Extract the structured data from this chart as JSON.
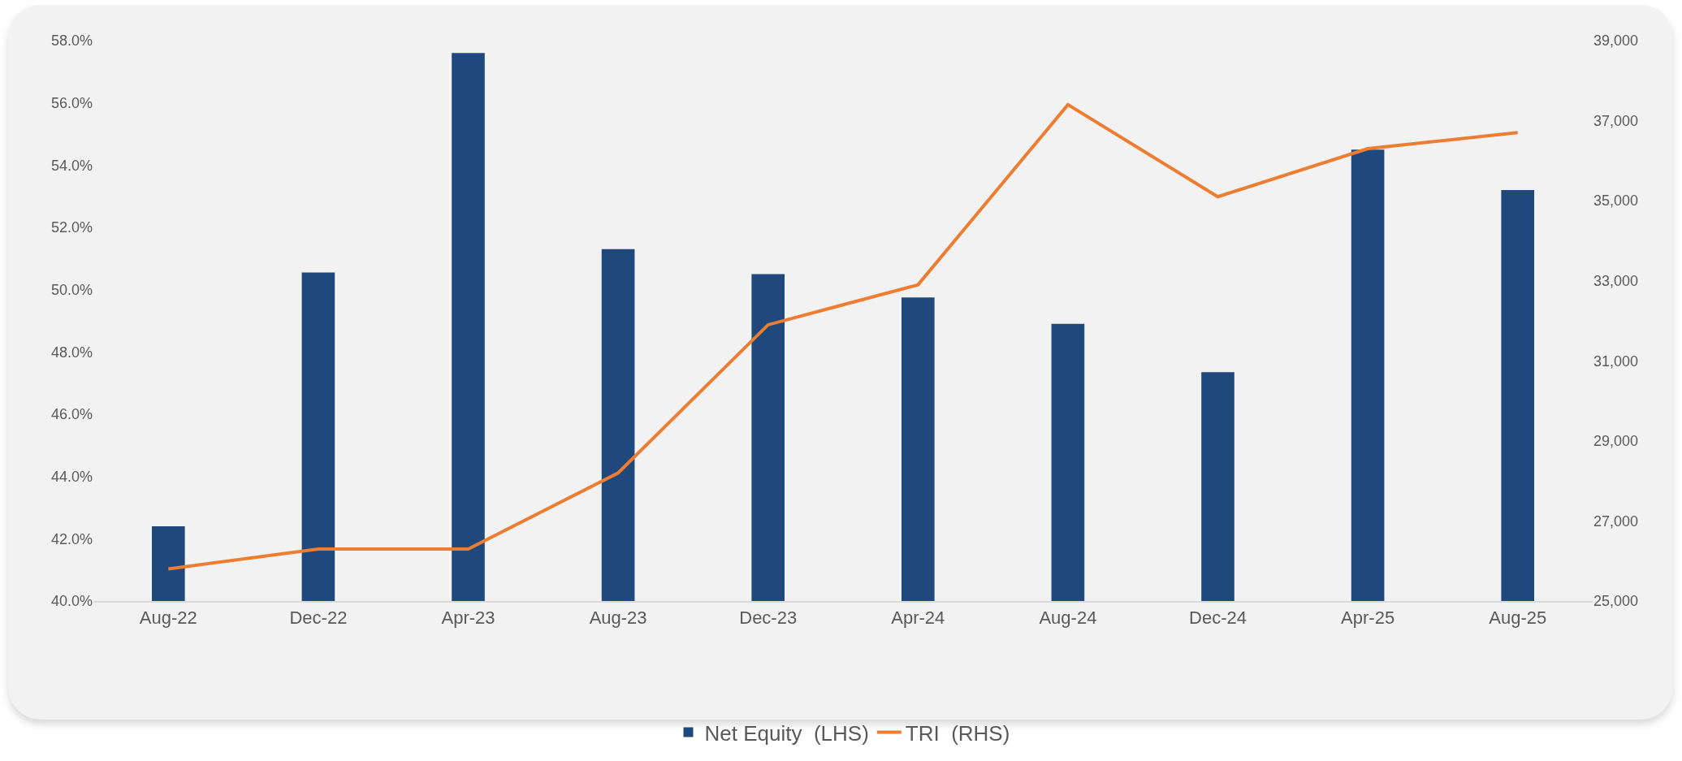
{
  "chart_data": {
    "type": "bar",
    "categories": [
      "Aug-22",
      "Dec-22",
      "Apr-23",
      "Aug-23",
      "Dec-23",
      "Apr-24",
      "Aug-24",
      "Dec-24",
      "Apr-25",
      "Aug-25"
    ],
    "series": [
      {
        "name": "Net Equity  (LHS)",
        "color": "#1f497d",
        "values": [
          42.4,
          50.55,
          57.6,
          51.3,
          50.5,
          49.75,
          48.9,
          47.35,
          54.5,
          53.2
        ]
      },
      {
        "name": "TRI  (RHS)",
        "type": "line",
        "axis": "y2",
        "color": "#ed7d31",
        "values": [
          25800,
          26300,
          26300,
          28200,
          31900,
          32900,
          37400,
          35100,
          36300,
          36700
        ]
      }
    ],
    "ylim": [
      40,
      58
    ],
    "yticks": [
      {
        "value": 40,
        "label": "40.0%"
      },
      {
        "value": 42,
        "label": "42.0%"
      },
      {
        "value": 44,
        "label": "44.0%"
      },
      {
        "value": 46,
        "label": "46.0%"
      },
      {
        "value": 48,
        "label": "48.0%"
      },
      {
        "value": 50,
        "label": "50.0%"
      },
      {
        "value": 52,
        "label": "52.0%"
      },
      {
        "value": 54,
        "label": "54.0%"
      },
      {
        "value": 56,
        "label": "56.0%"
      },
      {
        "value": 58,
        "label": "58.0%"
      }
    ],
    "y2lim": [
      25000,
      39000
    ],
    "y2ticks": [
      {
        "value": 25000,
        "label": "25,000"
      },
      {
        "value": 27000,
        "label": "27,000"
      },
      {
        "value": 29000,
        "label": "29,000"
      },
      {
        "value": 31000,
        "label": "31,000"
      },
      {
        "value": 33000,
        "label": "33,000"
      },
      {
        "value": 35000,
        "label": "35,000"
      },
      {
        "value": 37000,
        "label": "37,000"
      },
      {
        "value": 39000,
        "label": "39,000"
      }
    ],
    "legend": "bottom",
    "marker": "none",
    "line_style": "solid"
  }
}
